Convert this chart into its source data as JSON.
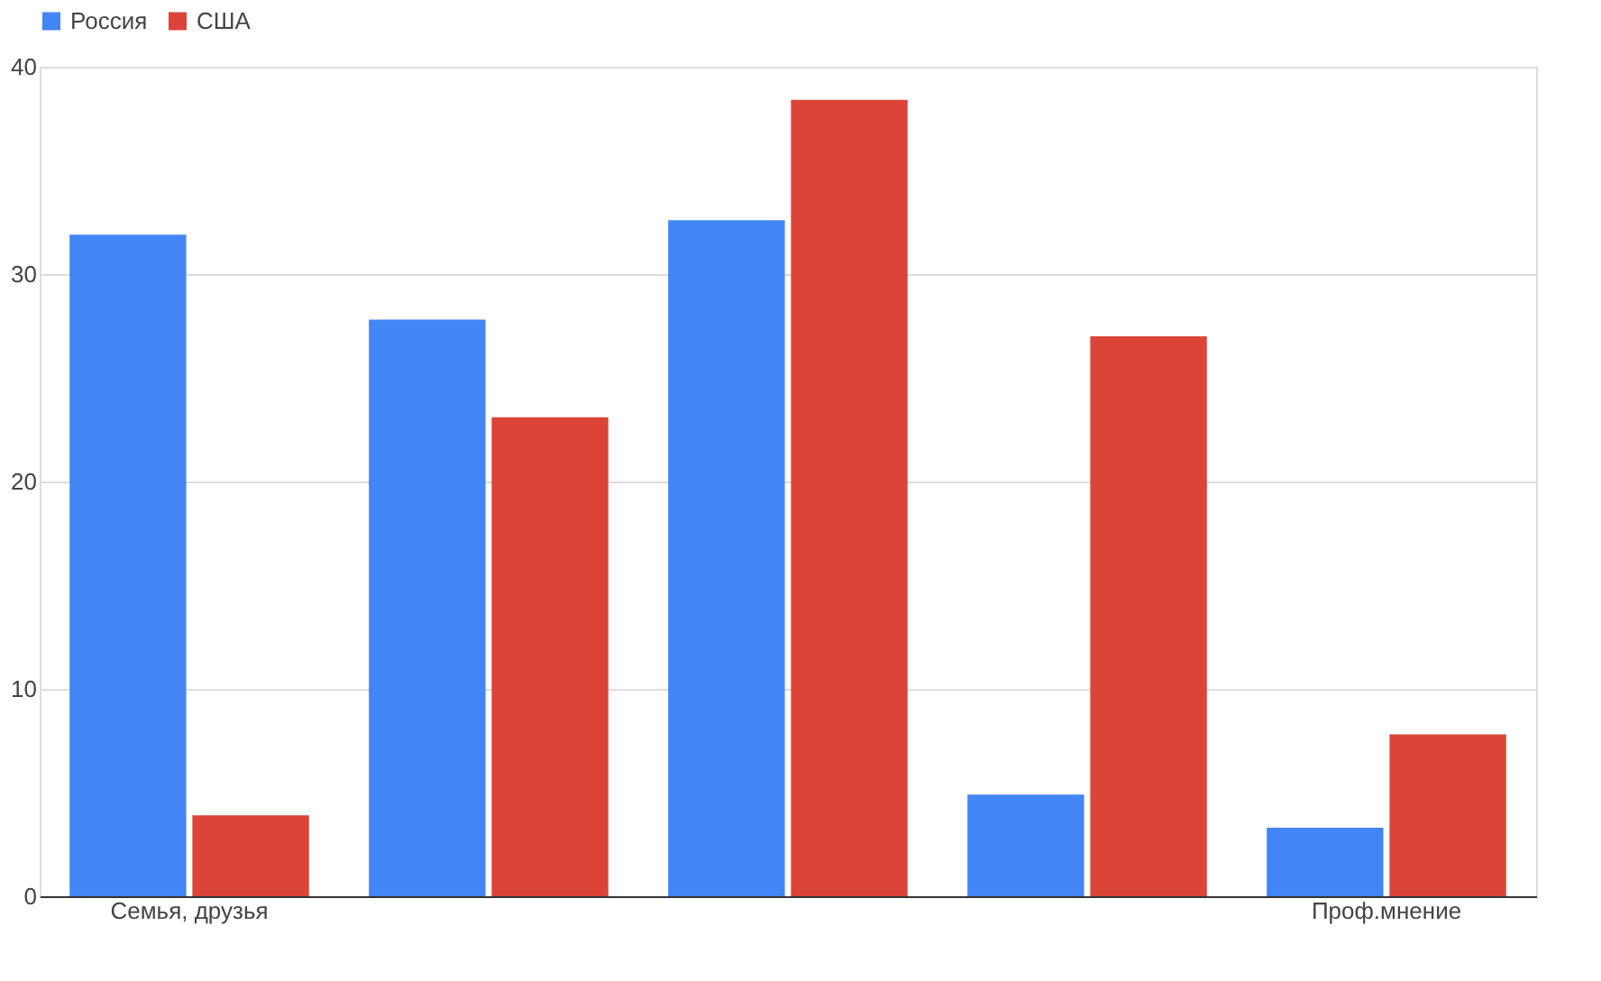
{
  "chart_data": {
    "type": "bar",
    "categories": [
      "Семья, друзья",
      null,
      null,
      null,
      "Проф.мнение"
    ],
    "series": [
      {
        "name": "Россия",
        "color": "#4285f4",
        "values": [
          31.9,
          27.8,
          32.6,
          4.9,
          3.3
        ]
      },
      {
        "name": "США",
        "color": "#db4437",
        "values": [
          3.9,
          23.1,
          38.4,
          27.0,
          7.8
        ]
      }
    ],
    "ylim": [
      0,
      40
    ],
    "yticks": [
      0,
      10,
      20,
      30,
      40
    ],
    "grid": "y",
    "legend": "top"
  }
}
